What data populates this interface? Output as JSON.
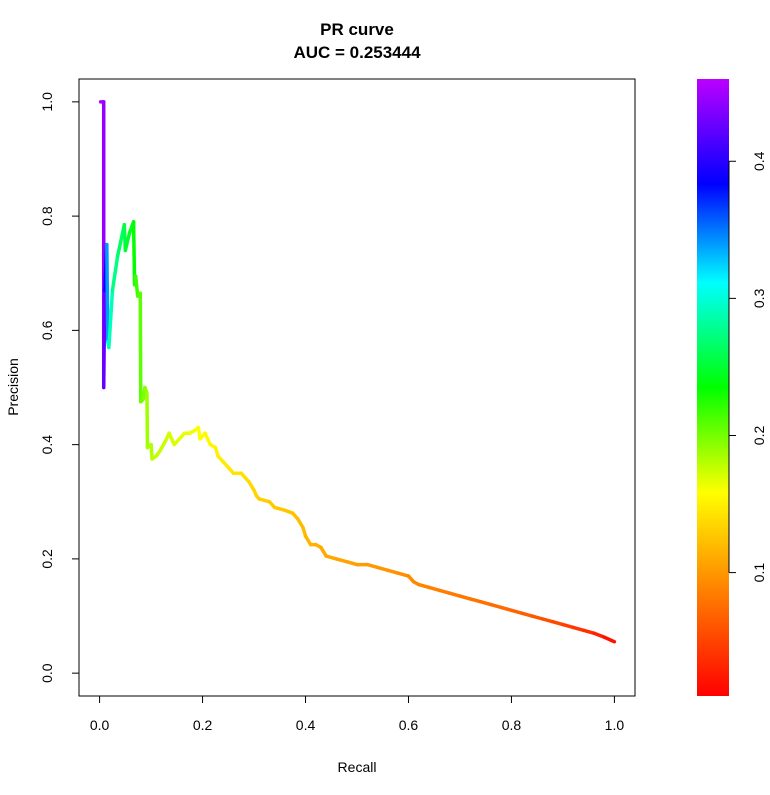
{
  "chart_data": {
    "type": "line",
    "title": "PR curve",
    "subtitle": "AUC = 0.253444",
    "xlabel": "Recall",
    "ylabel": "Precision",
    "xlim": [
      -0.04,
      1.04
    ],
    "ylim": [
      -0.04,
      1.04
    ],
    "xticks": [
      0.0,
      0.2,
      0.4,
      0.6,
      0.8,
      1.0
    ],
    "yticks": [
      0.0,
      0.2,
      0.4,
      0.6,
      0.8,
      1.0
    ],
    "xtick_labels": [
      "0.0",
      "0.2",
      "0.4",
      "0.6",
      "0.8",
      "1.0"
    ],
    "ytick_labels": [
      "0.0",
      "0.2",
      "0.4",
      "0.6",
      "0.8",
      "1.0"
    ],
    "grid": false,
    "legend": "none",
    "colorbar": {
      "range": [
        0.01,
        0.46
      ],
      "ticks": [
        0.1,
        0.2,
        0.3,
        0.4
      ],
      "tick_labels": [
        "0.1",
        "0.2",
        "0.3",
        "0.4"
      ],
      "colormap": "rainbow (red to magenta)"
    },
    "series": [
      {
        "points": [
          [
            0.002,
            1.0,
            0.46
          ],
          [
            0.008,
            1.0,
            0.45
          ],
          [
            0.008,
            0.5,
            0.44
          ],
          [
            0.01,
            0.67,
            0.41
          ],
          [
            0.014,
            0.75,
            0.37
          ],
          [
            0.016,
            0.58,
            0.31
          ],
          [
            0.018,
            0.57,
            0.3
          ],
          [
            0.025,
            0.67,
            0.28
          ],
          [
            0.035,
            0.73,
            0.27
          ],
          [
            0.048,
            0.785,
            0.26
          ],
          [
            0.05,
            0.74,
            0.25
          ],
          [
            0.058,
            0.77,
            0.245
          ],
          [
            0.066,
            0.79,
            0.24
          ],
          [
            0.068,
            0.68,
            0.23
          ],
          [
            0.07,
            0.695,
            0.22
          ],
          [
            0.074,
            0.66,
            0.215
          ],
          [
            0.079,
            0.665,
            0.21
          ],
          [
            0.08,
            0.475,
            0.205
          ],
          [
            0.085,
            0.48,
            0.2
          ],
          [
            0.088,
            0.5,
            0.195
          ],
          [
            0.092,
            0.49,
            0.19
          ],
          [
            0.093,
            0.395,
            0.185
          ],
          [
            0.1,
            0.4,
            0.183
          ],
          [
            0.102,
            0.375,
            0.18
          ],
          [
            0.11,
            0.38,
            0.178
          ],
          [
            0.118,
            0.39,
            0.176
          ],
          [
            0.13,
            0.41,
            0.174
          ],
          [
            0.135,
            0.42,
            0.172
          ],
          [
            0.145,
            0.4,
            0.17
          ],
          [
            0.155,
            0.41,
            0.168
          ],
          [
            0.165,
            0.42,
            0.166
          ],
          [
            0.175,
            0.42,
            0.164
          ],
          [
            0.185,
            0.425,
            0.162
          ],
          [
            0.192,
            0.43,
            0.16
          ],
          [
            0.195,
            0.41,
            0.158
          ],
          [
            0.205,
            0.42,
            0.156
          ],
          [
            0.215,
            0.4,
            0.154
          ],
          [
            0.225,
            0.395,
            0.152
          ],
          [
            0.23,
            0.38,
            0.15
          ],
          [
            0.24,
            0.37,
            0.148
          ],
          [
            0.25,
            0.36,
            0.146
          ],
          [
            0.26,
            0.35,
            0.144
          ],
          [
            0.275,
            0.35,
            0.142
          ],
          [
            0.285,
            0.34,
            0.14
          ],
          [
            0.29,
            0.335,
            0.138
          ],
          [
            0.3,
            0.32,
            0.136
          ],
          [
            0.305,
            0.31,
            0.134
          ],
          [
            0.31,
            0.305,
            0.132
          ],
          [
            0.33,
            0.3,
            0.13
          ],
          [
            0.34,
            0.29,
            0.128
          ],
          [
            0.36,
            0.285,
            0.126
          ],
          [
            0.375,
            0.28,
            0.124
          ],
          [
            0.385,
            0.27,
            0.122
          ],
          [
            0.395,
            0.255,
            0.12
          ],
          [
            0.4,
            0.24,
            0.118
          ],
          [
            0.41,
            0.225,
            0.116
          ],
          [
            0.42,
            0.225,
            0.114
          ],
          [
            0.43,
            0.22,
            0.112
          ],
          [
            0.44,
            0.205,
            0.11
          ],
          [
            0.46,
            0.2,
            0.108
          ],
          [
            0.48,
            0.195,
            0.106
          ],
          [
            0.5,
            0.19,
            0.104
          ],
          [
            0.52,
            0.19,
            0.102
          ],
          [
            0.54,
            0.185,
            0.1
          ],
          [
            0.56,
            0.18,
            0.098
          ],
          [
            0.58,
            0.175,
            0.096
          ],
          [
            0.6,
            0.17,
            0.094
          ],
          [
            0.61,
            0.16,
            0.092
          ],
          [
            0.62,
            0.155,
            0.09
          ],
          [
            0.64,
            0.15,
            0.088
          ],
          [
            0.66,
            0.145,
            0.086
          ],
          [
            0.68,
            0.14,
            0.084
          ],
          [
            0.7,
            0.135,
            0.082
          ],
          [
            0.72,
            0.13,
            0.08
          ],
          [
            0.74,
            0.125,
            0.078
          ],
          [
            0.76,
            0.12,
            0.076
          ],
          [
            0.78,
            0.115,
            0.074
          ],
          [
            0.8,
            0.11,
            0.072
          ],
          [
            0.82,
            0.105,
            0.068
          ],
          [
            0.84,
            0.1,
            0.064
          ],
          [
            0.86,
            0.095,
            0.06
          ],
          [
            0.88,
            0.09,
            0.055
          ],
          [
            0.9,
            0.085,
            0.05
          ],
          [
            0.92,
            0.08,
            0.045
          ],
          [
            0.94,
            0.075,
            0.04
          ],
          [
            0.96,
            0.07,
            0.034
          ],
          [
            0.98,
            0.063,
            0.026
          ],
          [
            1.0,
            0.055,
            0.015
          ]
        ]
      }
    ]
  }
}
